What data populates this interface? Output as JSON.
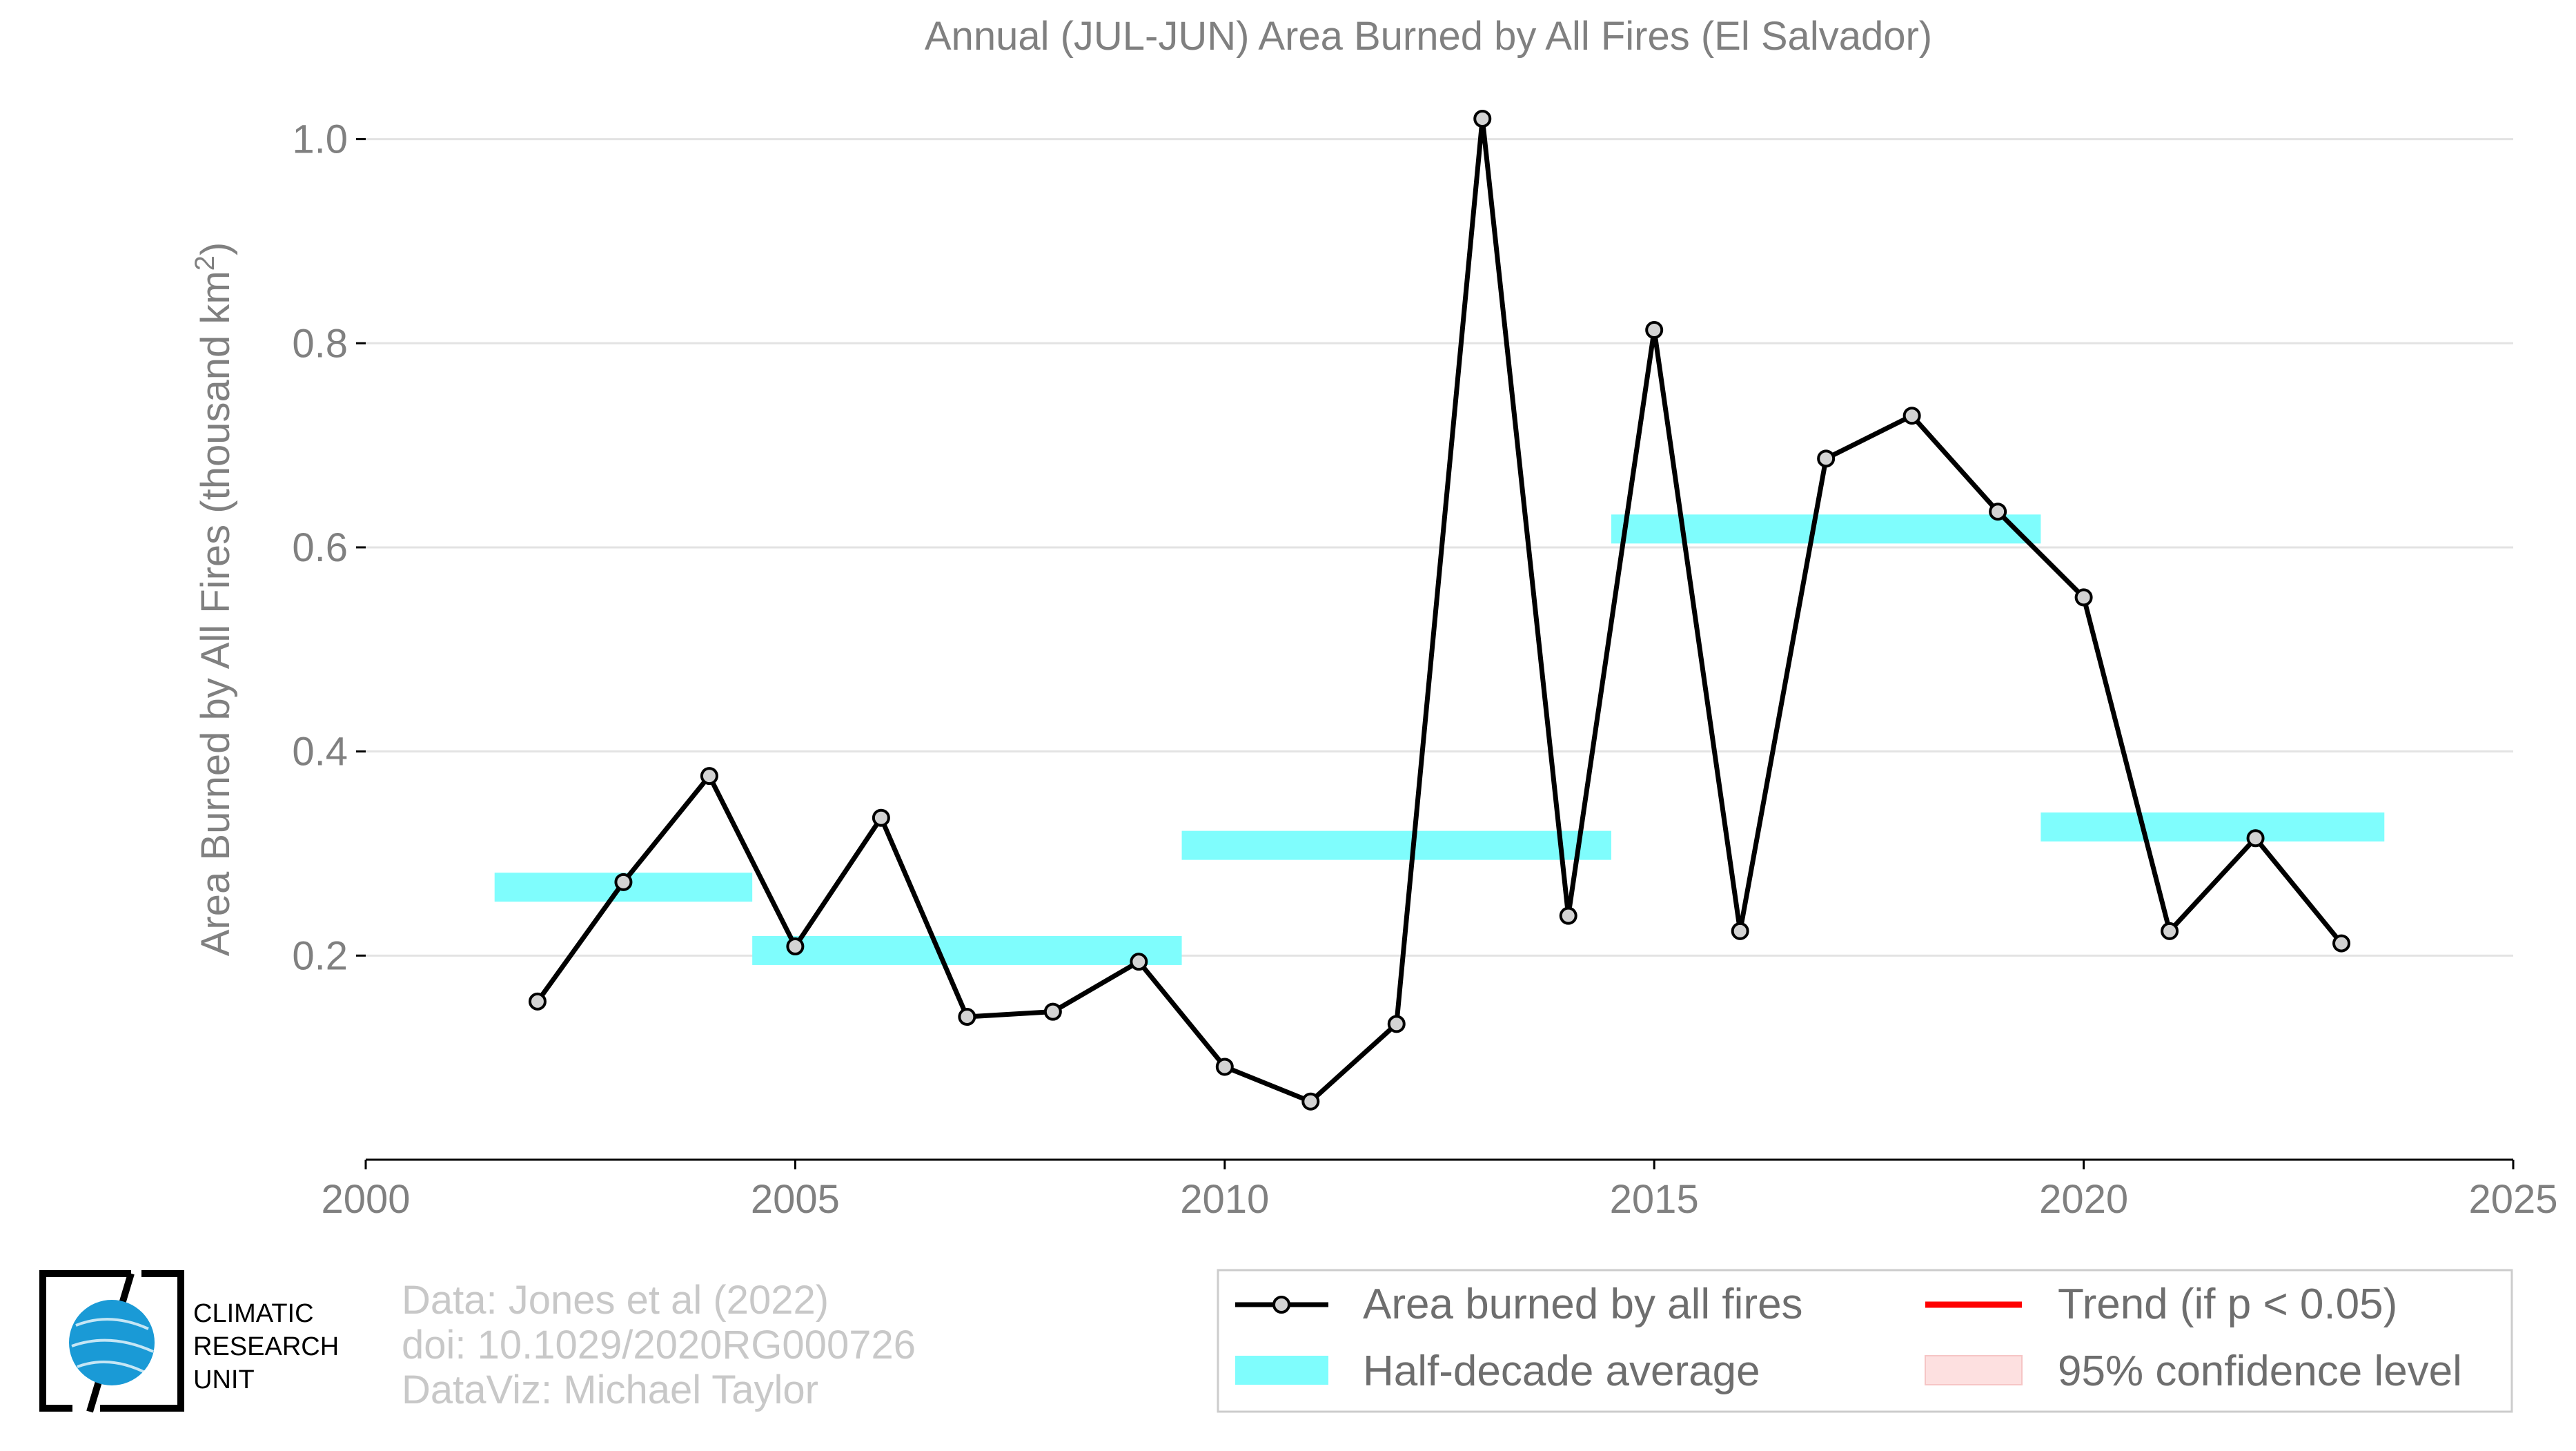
{
  "chart_data": {
    "type": "line",
    "title": "Annual (JUL-JUN) Area Burned by All Fires (El Salvador)",
    "xlabel": "",
    "ylabel": "Area Burned by All Fires (thousand km",
    "ylabel_superscript": "2",
    "ylabel_suffix": ")",
    "xlim": [
      2000,
      2025
    ],
    "ylim": [
      0,
      1.02
    ],
    "x_ticks": [
      2000,
      2005,
      2010,
      2015,
      2020,
      2025
    ],
    "y_ticks": [
      0.2,
      0.4,
      0.6,
      0.8,
      1.0
    ],
    "y_tick_labels": [
      "0.2",
      "0.4",
      "0.6",
      "0.8",
      "1.0"
    ],
    "series": [
      {
        "name": "Area burned by all fires",
        "color": "#000000",
        "marker_fill": "#d3d3d3",
        "x": [
          2002,
          2003,
          2004,
          2005,
          2006,
          2007,
          2008,
          2009,
          2010,
          2011,
          2012,
          2013,
          2014,
          2015,
          2016,
          2017,
          2018,
          2019,
          2020,
          2021,
          2022,
          2023
        ],
        "values": [
          0.155,
          0.272,
          0.376,
          0.209,
          0.335,
          0.14,
          0.145,
          0.194,
          0.091,
          0.057,
          0.133,
          1.02,
          0.239,
          0.813,
          0.224,
          0.687,
          0.729,
          0.635,
          0.551,
          0.224,
          0.315,
          0.212
        ]
      }
    ],
    "half_decade_average": {
      "name": "Half-decade average",
      "color": "#7ffdfd",
      "segments": [
        {
          "x0": 2001.5,
          "x1": 2004.5,
          "value": 0.267
        },
        {
          "x0": 2004.5,
          "x1": 2009.5,
          "value": 0.205
        },
        {
          "x0": 2009.5,
          "x1": 2014.5,
          "value": 0.308
        },
        {
          "x0": 2014.5,
          "x1": 2019.5,
          "value": 0.618
        },
        {
          "x0": 2019.5,
          "x1": 2023.5,
          "value": 0.326
        }
      ]
    },
    "legend": [
      {
        "label": "Area burned by all fires",
        "kind": "line-marker",
        "color": "#000000"
      },
      {
        "label": "Trend (if p < 0.05)",
        "kind": "line",
        "color": "#ff0000"
      },
      {
        "label": "Half-decade average",
        "kind": "band",
        "color": "#7ffdfd"
      },
      {
        "label": "95% confidence level",
        "kind": "band",
        "color": "#fde0e0"
      }
    ],
    "legend_position": "bottom-right"
  },
  "credits": [
    "Data: Jones et al (2022)",
    "doi: 10.1029/2020RG000726",
    "DataViz: Michael Taylor"
  ],
  "logo": {
    "lines": [
      "CLIMATIC",
      "RESEARCH",
      "UNIT"
    ],
    "globe_color": "#1a9ad6"
  }
}
